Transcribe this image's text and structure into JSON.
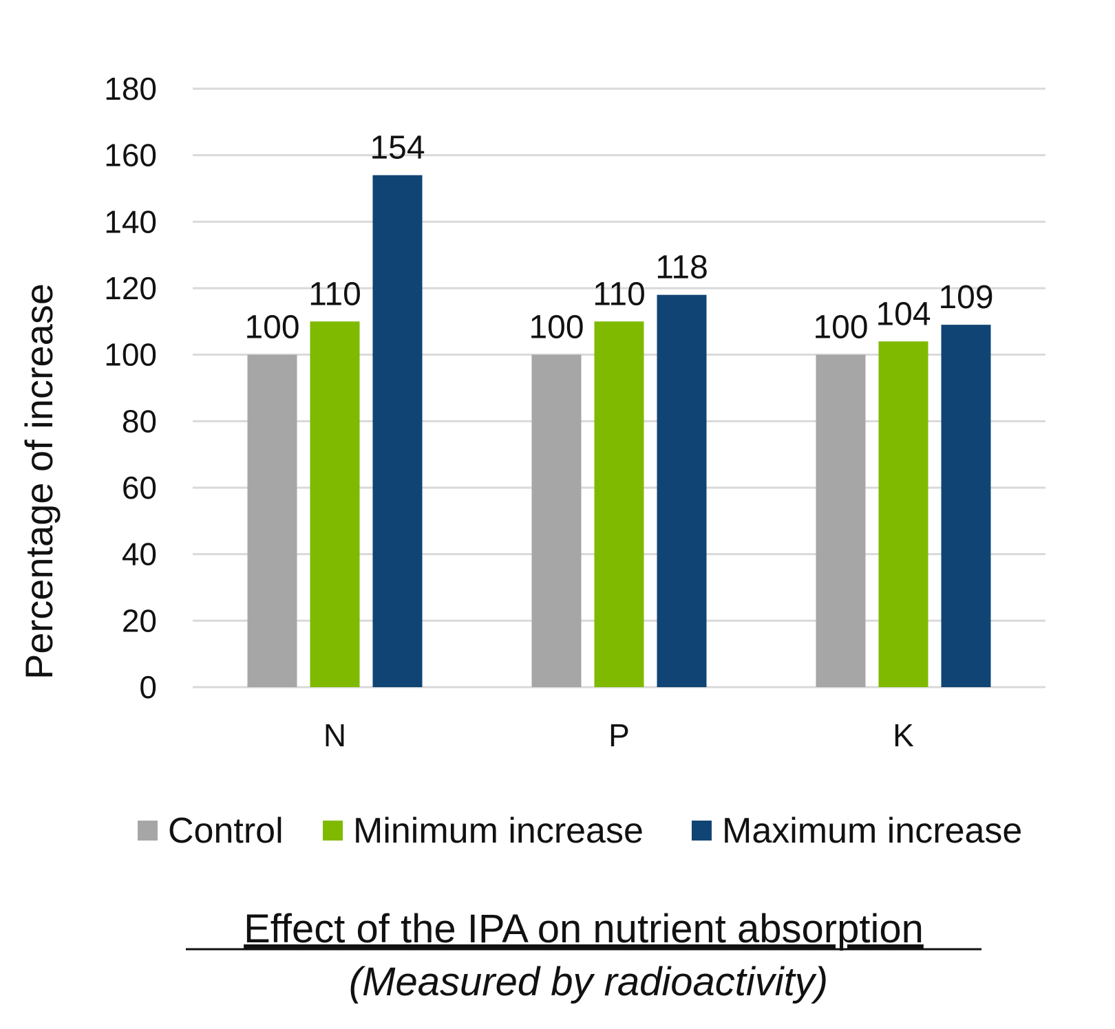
{
  "chart_data": {
    "type": "bar",
    "title": "Effect of the IPA on nutrient absorption",
    "subtitle": "(Measured by radioactivity)",
    "xlabel": "",
    "ylabel": "Percentage of increase",
    "ylim": [
      0,
      180
    ],
    "yticks": [
      0,
      20,
      40,
      60,
      80,
      100,
      120,
      140,
      160,
      180
    ],
    "grid": true,
    "legend_position": "bottom",
    "categories": [
      "N",
      "P",
      "K"
    ],
    "series": [
      {
        "name": "Control",
        "color": "#a6a6a6",
        "values": [
          100,
          100,
          100
        ]
      },
      {
        "name": "Minimum increase",
        "color": "#7fba00",
        "values": [
          110,
          110,
          104
        ]
      },
      {
        "name": "Maximum increase",
        "color": "#104474",
        "values": [
          154,
          118,
          109
        ]
      }
    ]
  }
}
